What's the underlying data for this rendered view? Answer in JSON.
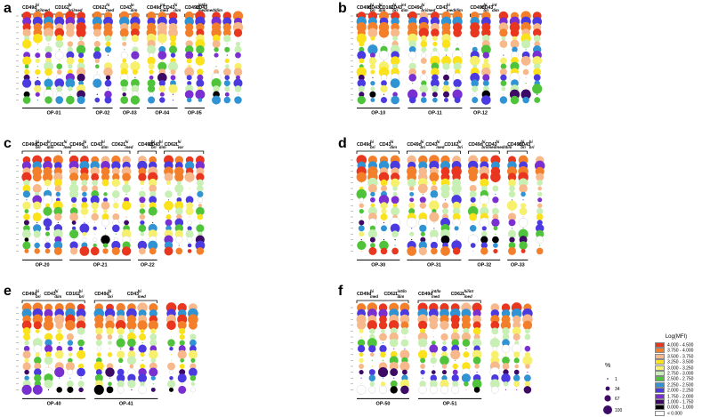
{
  "panels": [
    {
      "id": "a",
      "label": "a",
      "groups": [
        {
          "cols": 6,
          "name": "OP-01",
          "headers": [
            {
              "base": "CD49d",
              "sup": "hi",
              "sub": "bri/med"
            },
            {
              "base": "CD162",
              "sup": "hi",
              "sub": "bri/med"
            }
          ]
        },
        {
          "cols": 2,
          "name": "OP-02",
          "headers": [
            {
              "base": "CD62L",
              "sup": "hi",
              "sub": "med"
            }
          ]
        },
        {
          "cols": 2,
          "name": "OP-03",
          "headers": [
            {
              "base": "CD43",
              "sup": "lo",
              "sub": "dim"
            }
          ]
        },
        {
          "cols": 3,
          "name": "OP-04",
          "headers": [
            {
              "base": "CD49d",
              "sup": "int",
              "sub": "med"
            },
            {
              "base": "CD43",
              "sup": "hi",
              "sub": "dim"
            }
          ]
        },
        {
          "cols": 2,
          "name": "OP-05",
          "headers": [
            {
              "base": "CD49d",
              "sup": "int/lo",
              "sub": "med"
            },
            {
              "base": "CD43",
              "sup": "",
              "sub": "med/dim"
            }
          ]
        },
        {
          "cols": 3,
          "name": "",
          "headers": []
        }
      ]
    },
    {
      "id": "b",
      "label": "b",
      "groups": [
        {
          "cols": 4,
          "name": "OP-10",
          "headers": [
            {
              "base": "CD49d",
              "sup": "hi",
              "sub": "bri"
            },
            {
              "base": "CD43",
              "sup": "hi",
              "sub": "dim"
            },
            {
              "base": "CD162",
              "sup": "hi",
              "sub": "bri"
            },
            {
              "base": "CD43",
              "sup": "int",
              "sub": "dim"
            }
          ]
        },
        {
          "cols": 5,
          "name": "OP-11",
          "headers": [
            {
              "base": "CD49d",
              "sup": "hi",
              "sub": "bri/med"
            },
            {
              "base": "CD43",
              "sup": "hi",
              "sub": "med/dim"
            }
          ]
        },
        {
          "cols": 2,
          "name": "OP-12",
          "headers": [
            {
              "base": "CD49d",
              "sup": "hi",
              "sub": "bri"
            },
            {
              "base": "CD43",
              "sup": "int",
              "sub": "dim"
            }
          ]
        },
        {
          "cols": 4,
          "name": "",
          "headers": []
        }
      ]
    },
    {
      "id": "c",
      "label": "c",
      "groups": [
        {
          "cols": 4,
          "name": "OP-20",
          "headers": [
            {
              "base": "CD49d",
              "sup": "hi",
              "sub": "bri"
            },
            {
              "base": "CD43",
              "sup": "hi",
              "sub": "dim"
            },
            {
              "base": "CD62L",
              "sup": "hi",
              "sub": "med"
            }
          ]
        },
        {
          "cols": 6,
          "name": "OP-21",
          "headers": [
            {
              "base": "CD49d",
              "sup": "hi",
              "sub": "bri"
            },
            {
              "base": "CD43",
              "sup": "hi",
              "sub": "dim"
            },
            {
              "base": "CD62L",
              "sup": "hi",
              "sub": "med"
            }
          ]
        },
        {
          "cols": 2,
          "name": "OP-22",
          "headers": [
            {
              "base": "CD49d",
              "sup": "hi",
              "sub": "bri"
            },
            {
              "base": "CD43",
              "sup": "hi",
              "sub": "dim"
            }
          ]
        },
        {
          "cols": 4,
          "name": "",
          "headers": [
            {
              "base": "CD62L",
              "sup": "hi",
              "sub": "var"
            }
          ]
        }
      ]
    },
    {
      "id": "d",
      "label": "d",
      "groups": [
        {
          "cols": 4,
          "name": "OP-30",
          "headers": [
            {
              "base": "CD49d",
              "sup": "hi",
              "sub": "bri"
            },
            {
              "base": "CD43",
              "sup": "hi",
              "sub": "dim"
            }
          ]
        },
        {
          "cols": 5,
          "name": "OP-31",
          "headers": [
            {
              "base": "CD49d",
              "sup": "hi",
              "sub": "bri"
            },
            {
              "base": "CD43",
              "sup": "hi",
              "sub": "med"
            },
            {
              "base": "CD162",
              "sup": "hi",
              "sub": "bri"
            }
          ]
        },
        {
          "cols": 3,
          "name": "OP-32",
          "headers": [
            {
              "base": "CD49d",
              "sup": "hi",
              "sub": "bri/med"
            },
            {
              "base": "CD43",
              "sup": "hi",
              "sub": "med/dim"
            }
          ]
        },
        {
          "cols": 2,
          "name": "OP-33",
          "headers": [
            {
              "base": "CD49d",
              "sup": "hi",
              "sub": "bri"
            },
            {
              "base": "CD43",
              "sup": "hi",
              "sub": "bri"
            }
          ]
        },
        {
          "cols": 1,
          "name": "",
          "headers": []
        }
      ]
    },
    {
      "id": "e",
      "label": "e",
      "groups": [
        {
          "cols": 6,
          "name": "OP-40",
          "headers": [
            {
              "base": "CD49d",
              "sup": "hi",
              "sub": "bri"
            },
            {
              "base": "CD43",
              "sup": "hi",
              "sub": "dim"
            },
            {
              "base": "CD162",
              "sup": "hi",
              "sub": "bri"
            }
          ]
        },
        {
          "cols": 6,
          "name": "OP-41",
          "headers": [
            {
              "base": "CD49d",
              "sup": "hi",
              "sub": "bri"
            },
            {
              "base": "CD43",
              "sup": "hi",
              "sub": "med"
            }
          ]
        },
        {
          "cols": 3,
          "name": "",
          "headers": []
        }
      ]
    },
    {
      "id": "f",
      "label": "f",
      "groups": [
        {
          "cols": 5,
          "name": "OP-50",
          "headers": [
            {
              "base": "CD49d",
              "sup": "hi",
              "sub": "med"
            },
            {
              "base": "CD62L",
              "sup": "int/lo",
              "sub": "dim"
            }
          ]
        },
        {
          "cols": 6,
          "name": "OP-51",
          "headers": [
            {
              "base": "CD49d",
              "sup": "int/lo",
              "sub": "med"
            },
            {
              "base": "CD62L",
              "sup": "hi/int",
              "sub": "med"
            }
          ]
        },
        {
          "cols": 4,
          "name": "",
          "headers": []
        }
      ]
    }
  ],
  "legend": {
    "title": "Log(MFI)",
    "bins": [
      {
        "label": "4.000 - 4.500",
        "color": "#e8371e"
      },
      {
        "label": "3.750 - 4.000",
        "color": "#f47f2a"
      },
      {
        "label": "3.500 - 3.750",
        "color": "#f7b98c"
      },
      {
        "label": "3.250 - 3.500",
        "color": "#fbe21a"
      },
      {
        "label": "3.000 - 3.250",
        "color": "#f6f06d"
      },
      {
        "label": "2.750 - 3.000",
        "color": "#c9f0b4"
      },
      {
        "label": "2.500 - 2.750",
        "color": "#4fc43b"
      },
      {
        "label": "2.250 - 2.500",
        "color": "#2f93d4"
      },
      {
        "label": "2.000 - 2.250",
        "color": "#4a3ae0"
      },
      {
        "label": "1.750 - 2.000",
        "color": "#7a2fd0"
      },
      {
        "label": "1.000 - 1.750",
        "color": "#3d0a66"
      },
      {
        "label": "0.000 - 1.000",
        "color": "#000000"
      },
      {
        "label": "< 0.000",
        "color": "#ffffff"
      }
    ],
    "size_title": "%",
    "sizes": [
      "1",
      "34",
      "67",
      "100"
    ]
  }
}
